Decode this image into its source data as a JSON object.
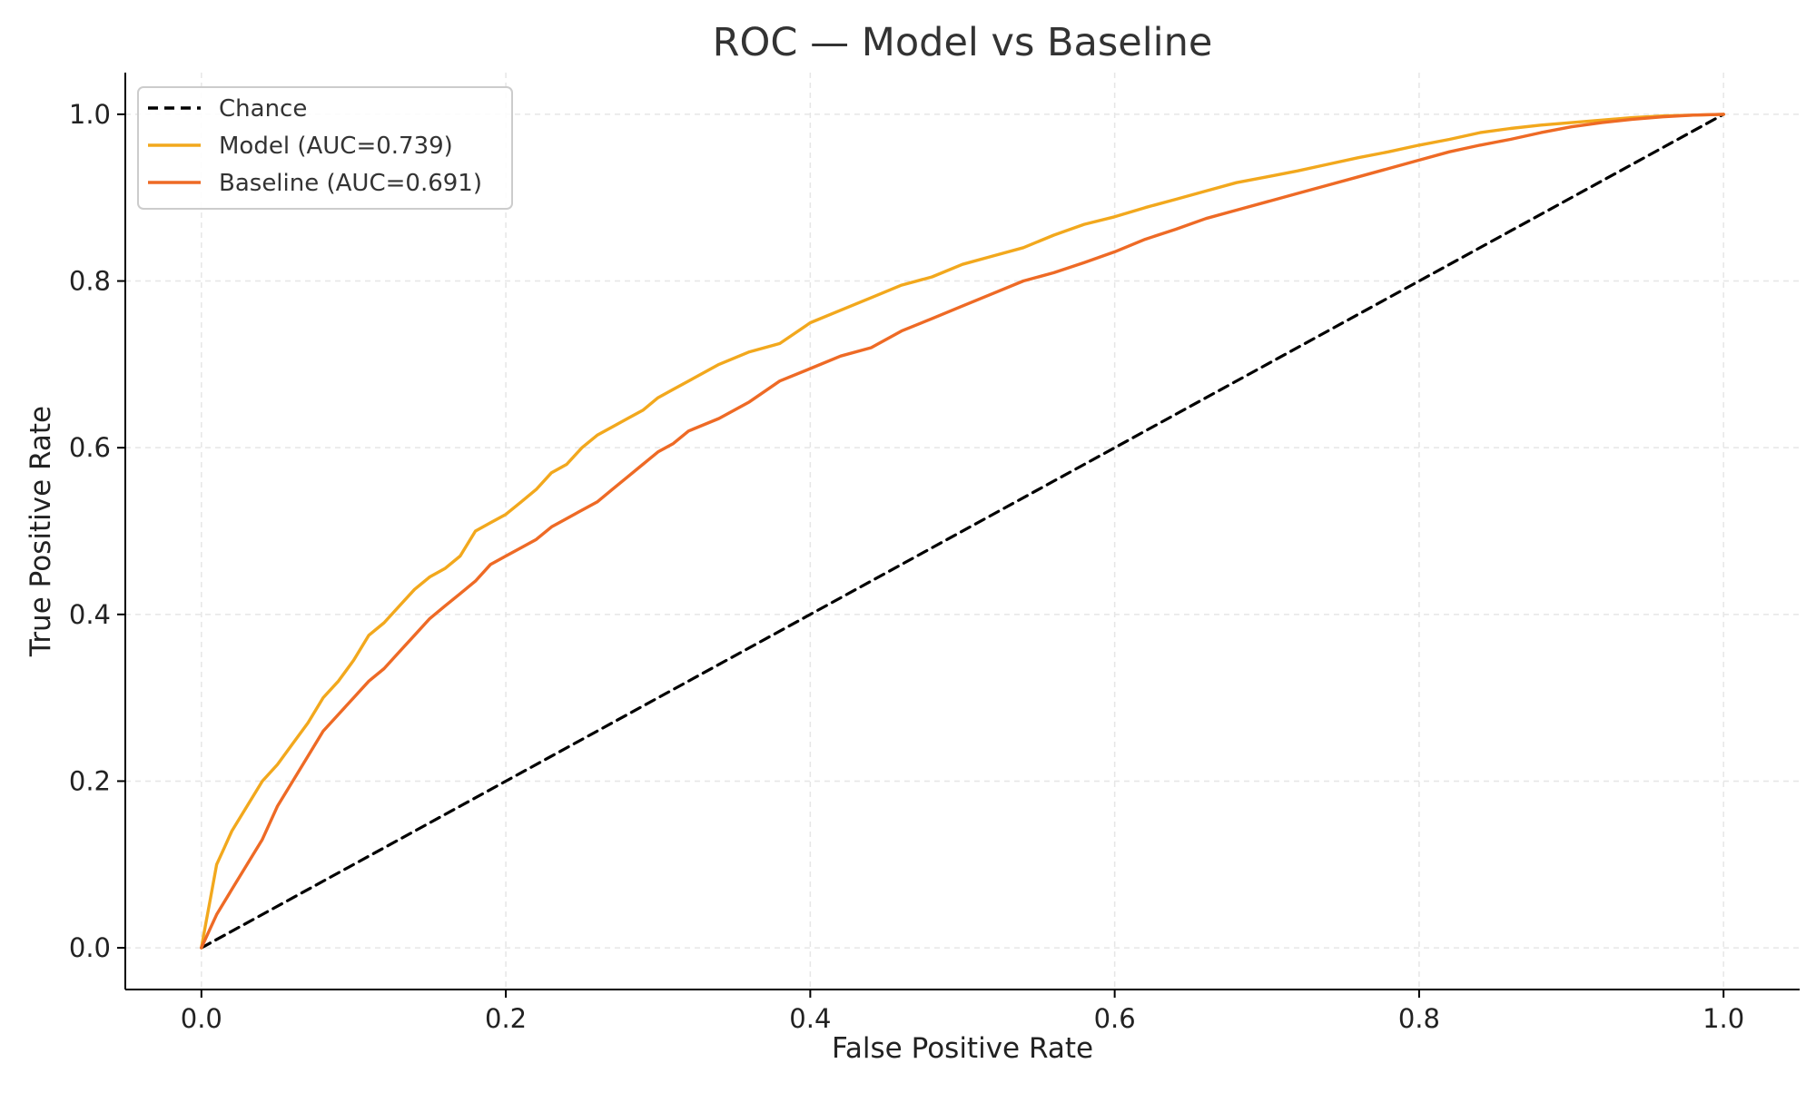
{
  "chart_data": {
    "type": "line",
    "title": "ROC — Model vs Baseline",
    "xlabel": "False Positive Rate",
    "ylabel": "True Positive Rate",
    "xlim": [
      -0.05,
      1.05
    ],
    "ylim": [
      -0.05,
      1.05
    ],
    "xticks": [
      0.0,
      0.2,
      0.4,
      0.6,
      0.8,
      1.0
    ],
    "yticks": [
      0.0,
      0.2,
      0.4,
      0.6,
      0.8,
      1.0
    ],
    "xtick_labels": [
      "0.0",
      "0.2",
      "0.4",
      "0.6",
      "0.8",
      "1.0"
    ],
    "ytick_labels": [
      "0.0",
      "0.2",
      "0.4",
      "0.6",
      "0.8",
      "1.0"
    ],
    "grid": true,
    "legend_position": "upper left",
    "series": [
      {
        "name": "Chance",
        "color": "#000000",
        "style": "dashed",
        "x": [
          0.0,
          1.0
        ],
        "y": [
          0.0,
          1.0
        ]
      },
      {
        "name": "Model (AUC=0.739)",
        "color": "#f2a81d",
        "style": "solid",
        "x": [
          0.0,
          0.003,
          0.006,
          0.01,
          0.015,
          0.02,
          0.03,
          0.04,
          0.05,
          0.06,
          0.07,
          0.08,
          0.09,
          0.1,
          0.11,
          0.12,
          0.13,
          0.14,
          0.15,
          0.16,
          0.17,
          0.18,
          0.19,
          0.2,
          0.21,
          0.22,
          0.23,
          0.24,
          0.25,
          0.26,
          0.27,
          0.28,
          0.29,
          0.3,
          0.31,
          0.32,
          0.34,
          0.36,
          0.38,
          0.4,
          0.42,
          0.44,
          0.46,
          0.48,
          0.5,
          0.52,
          0.54,
          0.56,
          0.58,
          0.6,
          0.62,
          0.64,
          0.66,
          0.68,
          0.7,
          0.72,
          0.74,
          0.76,
          0.78,
          0.8,
          0.82,
          0.84,
          0.86,
          0.88,
          0.9,
          0.92,
          0.94,
          0.96,
          0.98,
          1.0
        ],
        "y": [
          0.0,
          0.03,
          0.06,
          0.1,
          0.12,
          0.14,
          0.17,
          0.2,
          0.22,
          0.245,
          0.27,
          0.3,
          0.32,
          0.345,
          0.375,
          0.39,
          0.41,
          0.43,
          0.445,
          0.455,
          0.47,
          0.5,
          0.51,
          0.52,
          0.535,
          0.55,
          0.57,
          0.58,
          0.6,
          0.615,
          0.625,
          0.635,
          0.645,
          0.66,
          0.67,
          0.68,
          0.7,
          0.715,
          0.725,
          0.75,
          0.765,
          0.78,
          0.795,
          0.805,
          0.82,
          0.83,
          0.84,
          0.855,
          0.868,
          0.877,
          0.888,
          0.898,
          0.908,
          0.918,
          0.925,
          0.932,
          0.94,
          0.948,
          0.955,
          0.963,
          0.97,
          0.978,
          0.983,
          0.987,
          0.99,
          0.993,
          0.996,
          0.998,
          0.999,
          1.0
        ]
      },
      {
        "name": "Baseline (AUC=0.691)",
        "color": "#ee6a25",
        "style": "solid",
        "x": [
          0.0,
          0.005,
          0.01,
          0.02,
          0.03,
          0.04,
          0.05,
          0.06,
          0.07,
          0.08,
          0.09,
          0.1,
          0.11,
          0.12,
          0.13,
          0.14,
          0.15,
          0.16,
          0.17,
          0.18,
          0.19,
          0.2,
          0.21,
          0.22,
          0.23,
          0.24,
          0.25,
          0.26,
          0.27,
          0.28,
          0.29,
          0.3,
          0.31,
          0.32,
          0.34,
          0.36,
          0.38,
          0.4,
          0.42,
          0.44,
          0.46,
          0.48,
          0.5,
          0.52,
          0.54,
          0.56,
          0.58,
          0.6,
          0.62,
          0.64,
          0.66,
          0.68,
          0.7,
          0.72,
          0.74,
          0.76,
          0.78,
          0.8,
          0.82,
          0.84,
          0.86,
          0.88,
          0.9,
          0.92,
          0.94,
          0.96,
          0.98,
          1.0
        ],
        "y": [
          0.0,
          0.02,
          0.04,
          0.07,
          0.1,
          0.13,
          0.17,
          0.2,
          0.23,
          0.26,
          0.28,
          0.3,
          0.32,
          0.335,
          0.355,
          0.375,
          0.395,
          0.41,
          0.425,
          0.44,
          0.46,
          0.47,
          0.48,
          0.49,
          0.505,
          0.515,
          0.525,
          0.535,
          0.55,
          0.565,
          0.58,
          0.595,
          0.605,
          0.62,
          0.635,
          0.655,
          0.68,
          0.695,
          0.71,
          0.72,
          0.74,
          0.755,
          0.77,
          0.785,
          0.8,
          0.81,
          0.822,
          0.835,
          0.85,
          0.862,
          0.875,
          0.885,
          0.895,
          0.905,
          0.915,
          0.925,
          0.935,
          0.945,
          0.955,
          0.963,
          0.97,
          0.978,
          0.985,
          0.99,
          0.994,
          0.997,
          0.999,
          1.0
        ]
      }
    ]
  }
}
